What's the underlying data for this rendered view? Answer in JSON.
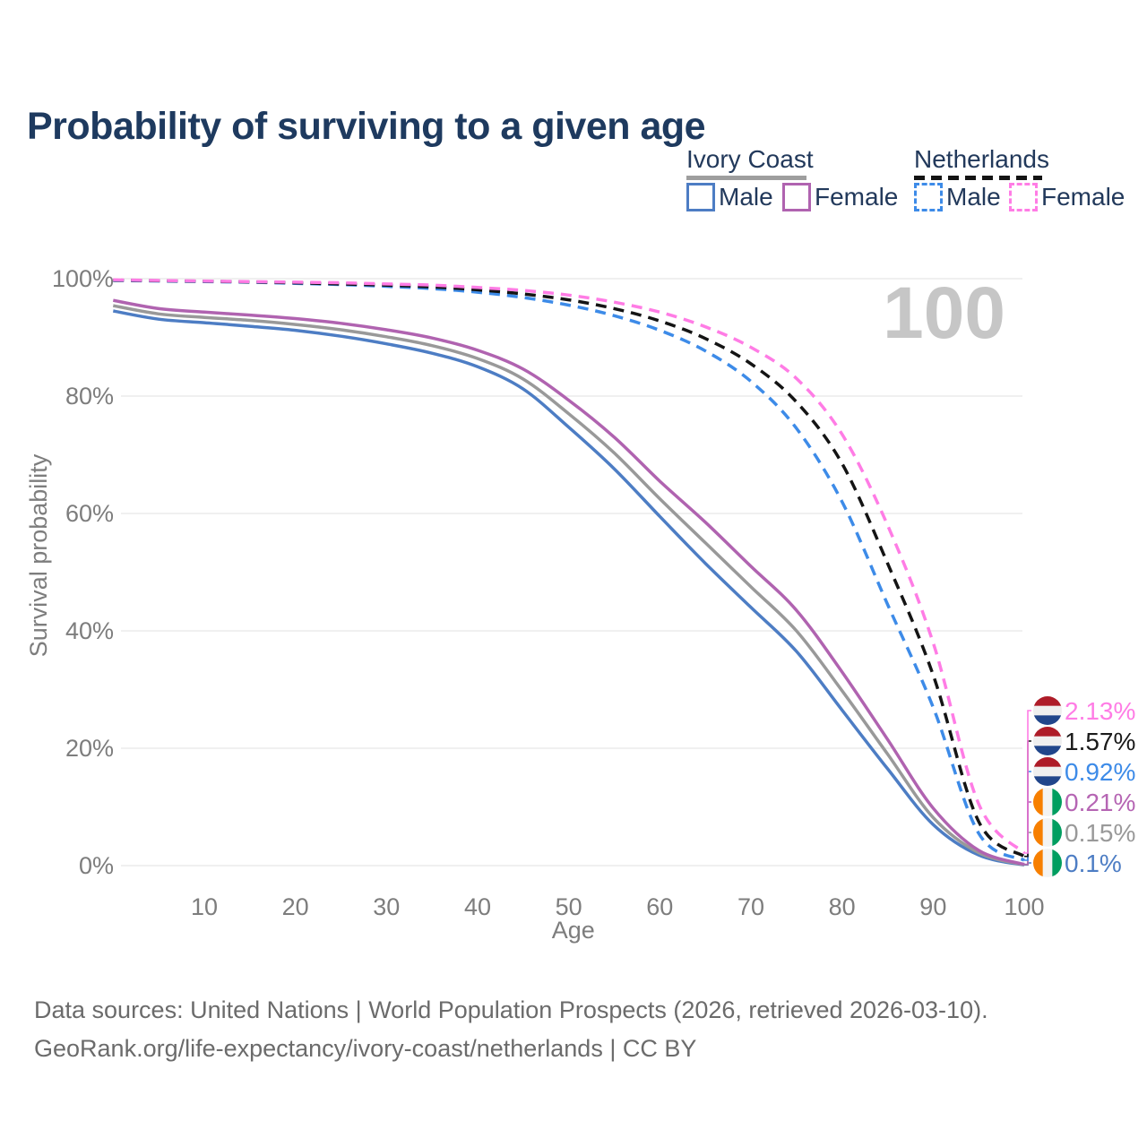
{
  "page_title": "Probability of surviving to a given age",
  "legend": {
    "groups": [
      {
        "label": "Ivory Coast",
        "line_style": "solid",
        "line_color": "#9e9e9e",
        "items": [
          {
            "label": "Male",
            "color": "#4d7dc4",
            "dashed": false
          },
          {
            "label": "Female",
            "color": "#b063b0",
            "dashed": false
          }
        ]
      },
      {
        "label": "Netherlands",
        "line_style": "dashed",
        "line_color": "#141414",
        "items": [
          {
            "label": "Male",
            "color": "#3d8be8",
            "dashed": true
          },
          {
            "label": "Female",
            "color": "#ff7ce5",
            "dashed": true
          }
        ]
      }
    ]
  },
  "chart_data": {
    "type": "line",
    "title": "Probability of surviving to a given age",
    "xlabel": "Age",
    "ylabel": "Survival probability",
    "xlim": [
      0,
      100
    ],
    "ylim": [
      0,
      100
    ],
    "x_ticks": [
      10,
      20,
      30,
      40,
      50,
      60,
      70,
      80,
      90,
      100
    ],
    "y_tick_labels": [
      "0%",
      "20%",
      "40%",
      "60%",
      "80%",
      "100%"
    ],
    "grid": "horizontal",
    "watermark": "100",
    "axis_text_color": "#7d7d7d",
    "grid_color": "#ececec",
    "watermark_color": "#c6c6c6",
    "ages": [
      0,
      5,
      10,
      15,
      20,
      25,
      30,
      35,
      40,
      45,
      50,
      55,
      60,
      65,
      70,
      75,
      80,
      85,
      90,
      95,
      100
    ],
    "series": [
      {
        "name": "Ivory Coast Male",
        "country": "Ivory Coast",
        "sex": "Male",
        "color": "#4d7dc4",
        "dash": "solid",
        "flag": "ci",
        "end_label": "0.1%",
        "end_value": 0.1,
        "label_color": "#4d7dc4",
        "label_row": 5,
        "values": [
          94.5,
          93.1,
          92.5,
          91.9,
          91.2,
          90.2,
          88.9,
          87.3,
          85.0,
          81.2,
          74.7,
          67.6,
          59.5,
          51.5,
          44.0,
          36.5,
          26.5,
          16.5,
          7.0,
          1.8,
          0.1
        ]
      },
      {
        "name": "Ivory Coast Both sexes",
        "country": "Ivory Coast",
        "sex": "Both",
        "color": "#999999",
        "dash": "solid",
        "flag": "ci",
        "end_label": "0.15%",
        "end_value": 0.15,
        "label_color": "#999999",
        "label_row": 4,
        "values": [
          95.4,
          94.0,
          93.4,
          92.9,
          92.2,
          91.3,
          90.1,
          88.6,
          86.4,
          82.9,
          77.0,
          70.3,
          62.5,
          55.0,
          47.5,
          40.0,
          29.8,
          19.0,
          8.2,
          2.2,
          0.15
        ]
      },
      {
        "name": "Ivory Coast Female",
        "country": "Ivory Coast",
        "sex": "Female",
        "color": "#b063b0",
        "dash": "solid",
        "flag": "ci",
        "end_label": "0.21%",
        "end_value": 0.21,
        "label_color": "#b565b3",
        "label_row": 3,
        "values": [
          96.3,
          94.9,
          94.3,
          93.8,
          93.2,
          92.4,
          91.3,
          89.9,
          87.8,
          84.6,
          79.3,
          73.0,
          65.5,
          58.5,
          51.0,
          43.5,
          33.0,
          21.5,
          9.8,
          2.6,
          0.21
        ]
      },
      {
        "name": "Netherlands Male",
        "country": "Netherlands",
        "sex": "Male",
        "color": "#3d8be8",
        "dash": "dashed",
        "flag": "nl",
        "end_label": "0.92%",
        "end_value": 0.92,
        "label_color": "#3d8be8",
        "label_row": 2,
        "values": [
          99.7,
          99.6,
          99.5,
          99.4,
          99.2,
          99.0,
          98.7,
          98.3,
          97.7,
          96.8,
          95.5,
          93.7,
          91.2,
          87.7,
          82.5,
          74.5,
          62.0,
          44.5,
          27.0,
          5.5,
          0.92
        ]
      },
      {
        "name": "Netherlands Both sexes",
        "country": "Netherlands",
        "sex": "Both",
        "color": "#141414",
        "dash": "dashed",
        "flag": "nl",
        "end_label": "1.57%",
        "end_value": 1.57,
        "label_color": "#1a1a1a",
        "label_row": 1,
        "values": [
          99.75,
          99.65,
          99.55,
          99.45,
          99.3,
          99.1,
          98.9,
          98.6,
          98.1,
          97.4,
          96.4,
          94.9,
          92.8,
          89.8,
          85.5,
          79.0,
          68.5,
          51.5,
          32.5,
          7.5,
          1.57
        ]
      },
      {
        "name": "Netherlands Female",
        "country": "Netherlands",
        "sex": "Female",
        "color": "#ff7ce5",
        "dash": "dashed",
        "flag": "nl",
        "end_label": "2.13%",
        "end_value": 2.13,
        "label_color": "#ff7ce5",
        "label_row": 0,
        "values": [
          99.8,
          99.7,
          99.6,
          99.5,
          99.4,
          99.3,
          99.1,
          98.9,
          98.5,
          98.0,
          97.2,
          96.0,
          94.3,
          91.8,
          88.3,
          83.0,
          73.5,
          58.0,
          38.0,
          10.5,
          2.13
        ]
      }
    ],
    "flag_colors": {
      "nl": [
        "#AE1C28",
        "#efefef",
        "#21468B"
      ],
      "ci": [
        "#F77F00",
        "#f3f3f3",
        "#009E60"
      ]
    }
  },
  "footer": {
    "line1": "Data sources: United Nations | World Population Prospects (2026, retrieved 2026-03-10).",
    "line2": "GeoRank.org/life-expectancy/ivory-coast/netherlands | CC BY"
  }
}
